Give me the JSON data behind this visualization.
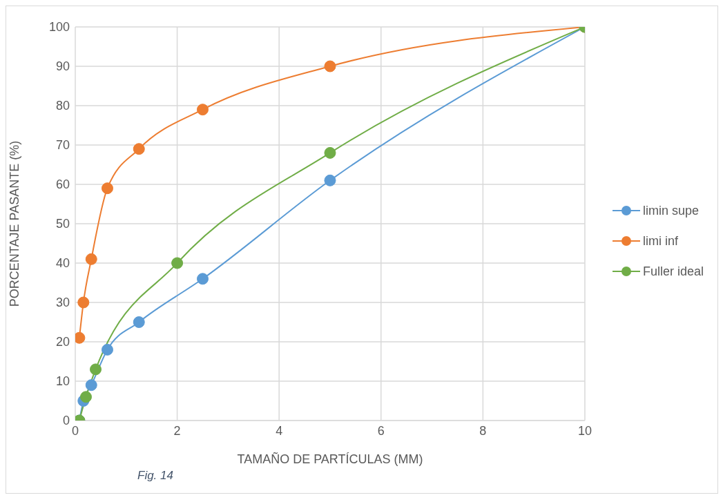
{
  "chart_data": {
    "type": "line",
    "xlabel": "TAMAÑO DE PARTÍCULAS (MM)",
    "ylabel": "PORCENTAJE PASANTE (%)",
    "series": [
      {
        "name": "limin supe",
        "color": "#5b9bd5",
        "x": [
          0.08,
          0.16,
          0.315,
          0.63,
          1.25,
          2.5,
          5,
          10
        ],
        "values": [
          0,
          5,
          9,
          18,
          25,
          36,
          61,
          100
        ]
      },
      {
        "name": "limi inf",
        "color": "#ed7d31",
        "x": [
          0.08,
          0.16,
          0.315,
          0.63,
          1.25,
          2.5,
          5,
          10
        ],
        "values": [
          21,
          30,
          41,
          59,
          69,
          79,
          90,
          100
        ]
      },
      {
        "name": "Fuller ideal",
        "color": "#70ad47",
        "x": [
          0.08,
          0.21,
          0.4,
          2,
          5,
          10
        ],
        "values": [
          0,
          6,
          13,
          40,
          68,
          100
        ]
      }
    ],
    "xlim": [
      0,
      10
    ],
    "xticks": [
      0,
      2,
      4,
      6,
      8,
      10
    ],
    "ylim": [
      0,
      100
    ],
    "yticks": [
      0,
      10,
      20,
      30,
      40,
      50,
      60,
      70,
      80,
      90,
      100
    ],
    "grid": true,
    "legend": "right",
    "marker": "circle",
    "line_style": "solid",
    "annotations": [
      "Fig. 14"
    ]
  }
}
